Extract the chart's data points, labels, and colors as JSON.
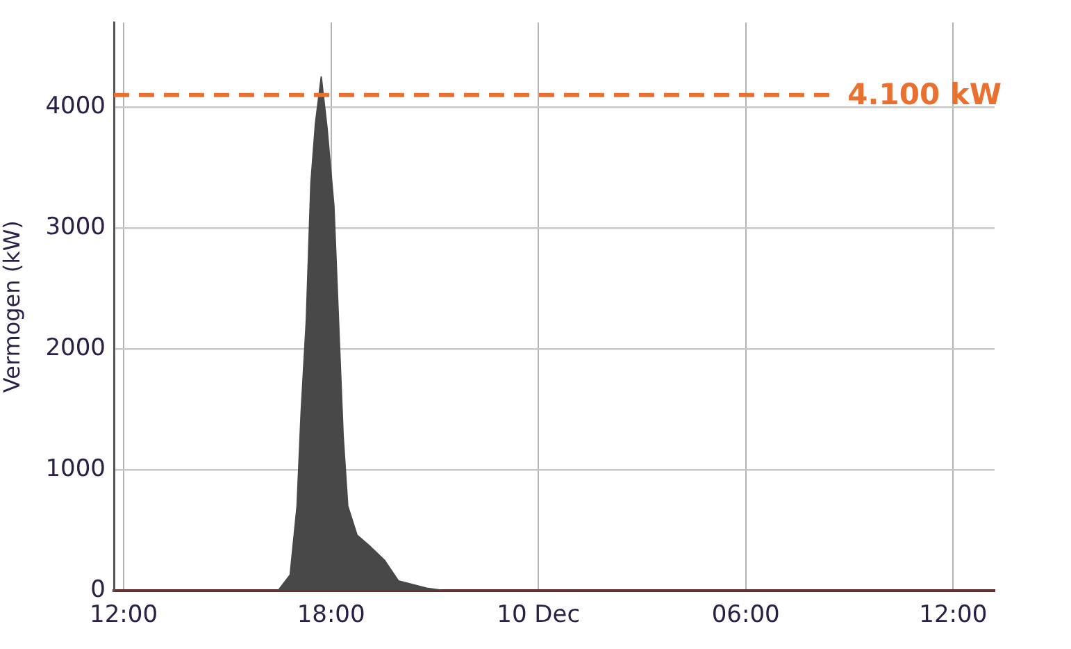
{
  "chart_data": {
    "type": "area",
    "ylabel": "Vermogen (kW)",
    "x": [
      "--12-09T11:43",
      "--12-09T16:28",
      "--12-09T16:49",
      "--12-09T17:01",
      "--12-09T17:08",
      "--12-09T17:17",
      "--12-09T17:25",
      "--12-09T17:33",
      "--12-09T17:43",
      "--12-09T17:53",
      "--12-09T18:05",
      "--12-09T18:13",
      "--12-09T18:21",
      "--12-09T18:29",
      "--12-09T18:45",
      "--12-09T19:09",
      "--12-09T19:33",
      "--12-09T19:57",
      "--12-09T20:46",
      "--12-09T21:17",
      "--12-10T13:12"
    ],
    "series": [
      {
        "color": "#484848",
        "values": [
          0,
          0,
          130,
          700,
          1470,
          2230,
          3370,
          3870,
          4250,
          3830,
          3180,
          2230,
          1280,
          700,
          460,
          360,
          250,
          80,
          20,
          0,
          0
        ]
      }
    ],
    "xlim": [
      "--12-09T11:43",
      "--12-10T13:12"
    ],
    "xticks": [
      {
        "value": "--12-09T12:00",
        "label": "12:00"
      },
      {
        "value": "--12-09T18:00",
        "label": "18:00"
      },
      {
        "value": "--12-10T00:00",
        "label": "10 Dec"
      },
      {
        "value": "--12-10T06:00",
        "label": "06:00"
      },
      {
        "value": "--12-10T12:00",
        "label": "12:00"
      }
    ],
    "ylim": [
      0,
      4700
    ],
    "yticks": [
      0,
      1000,
      2000,
      3000,
      4000
    ],
    "grid": true,
    "legend": false,
    "ref_lines": [
      {
        "axis": "y",
        "value": 4100,
        "label": "4.100 kW",
        "color": "#ea7030",
        "line_style": "dashed"
      }
    ]
  }
}
